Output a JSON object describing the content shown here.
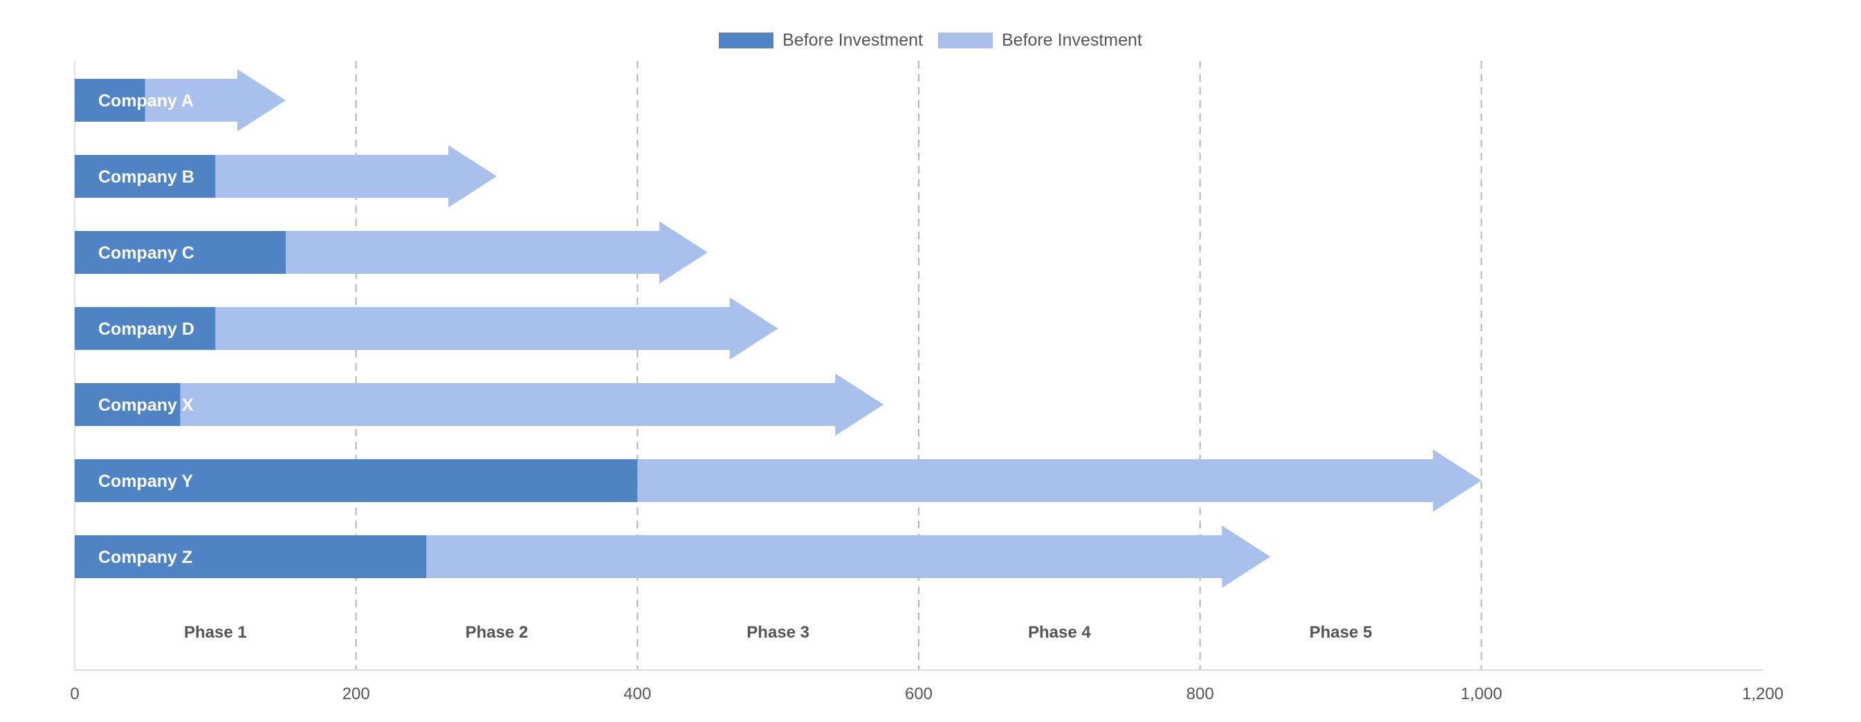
{
  "chart_data": {
    "type": "bar",
    "orientation": "horizontal",
    "stacked": true,
    "bar_end_style": "arrow",
    "categories": [
      "Company A",
      "Company B",
      "Company C",
      "Company D",
      "Company X",
      "Company Y",
      "Company Z"
    ],
    "series": [
      {
        "name": "Before Investment",
        "color": "#4f83c3",
        "values": [
          50,
          100,
          150,
          100,
          75,
          400,
          250
        ]
      },
      {
        "name": "Before Investment",
        "color": "#a9c0ed",
        "values": [
          100,
          200,
          300,
          400,
          500,
          600,
          600
        ]
      }
    ],
    "xlim": [
      0,
      1200
    ],
    "x_ticks": [
      "0",
      "200",
      "400",
      "600",
      "800",
      "1,000",
      "1,200"
    ],
    "phase_labels": [
      "Phase 1",
      "Phase 2",
      "Phase 3",
      "Phase 4",
      "Phase 5"
    ],
    "phase_boundaries": [
      200,
      400,
      600,
      800,
      1000
    ],
    "grid": "dashed vertical lines at phase boundaries",
    "legend_position": "top-center",
    "title": "",
    "xlabel": "",
    "ylabel": ""
  }
}
